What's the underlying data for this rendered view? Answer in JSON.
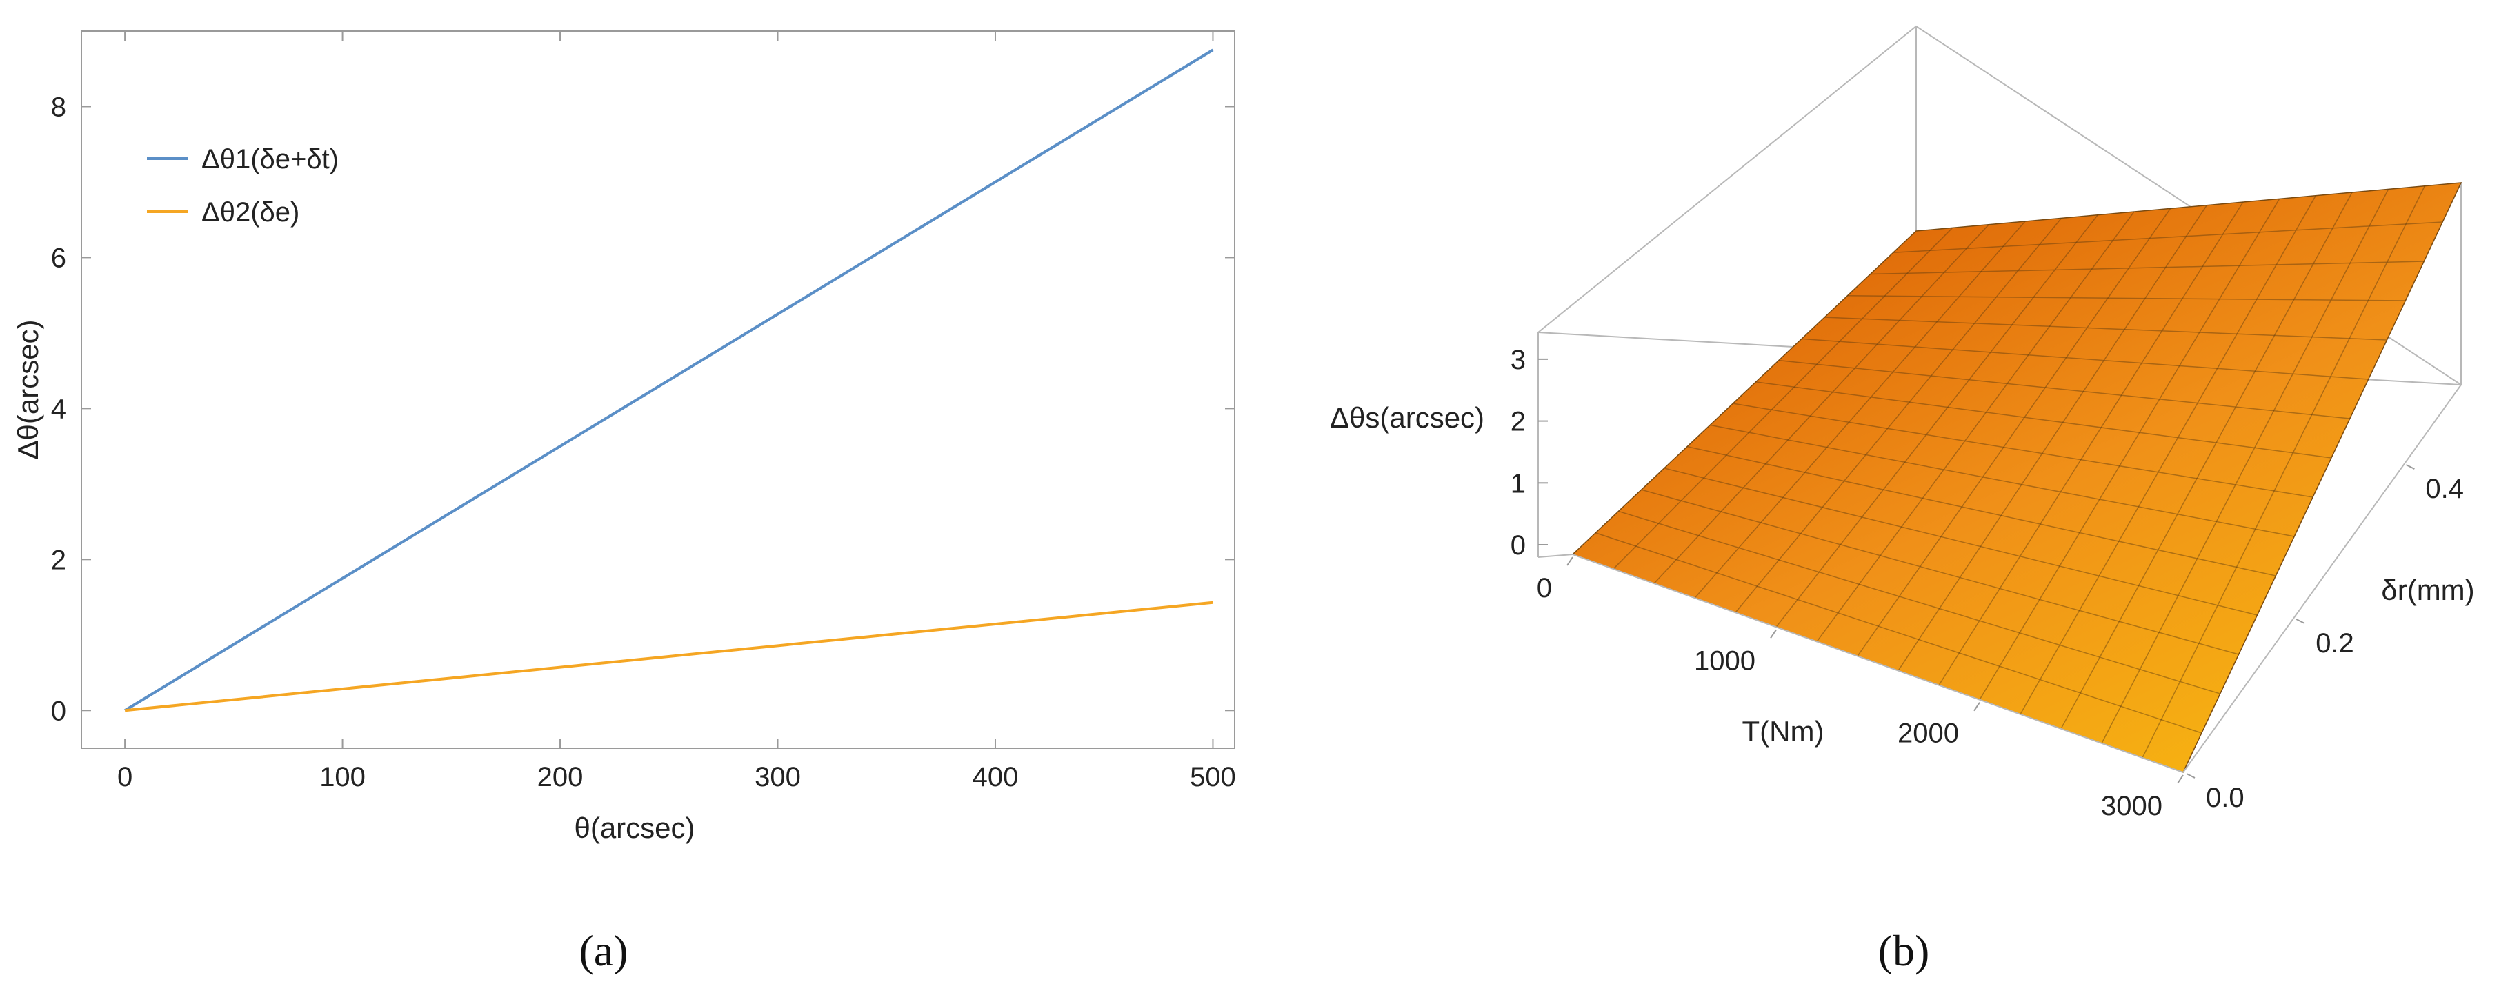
{
  "chart_data": [
    {
      "type": "line",
      "panel_label": "(a)",
      "xlabel": "θ(arcsec)",
      "ylabel": "Δθ(arcsec)",
      "xlim": [
        -20,
        510
      ],
      "ylim": [
        -0.5,
        9.0
      ],
      "xticks": [
        0,
        100,
        200,
        300,
        400,
        500
      ],
      "yticks": [
        0,
        2,
        4,
        6,
        8
      ],
      "grid": false,
      "legend_position": "top-left",
      "series": [
        {
          "name": "Δθ1(δe+δt)",
          "color": "#5b8fc7",
          "x": [
            0,
            500
          ],
          "y": [
            0,
            8.75
          ]
        },
        {
          "name": "Δθ2(δe)",
          "color": "#f5a623",
          "x": [
            0,
            500
          ],
          "y": [
            0,
            1.43
          ]
        }
      ]
    },
    {
      "type": "surface",
      "panel_label": "(b)",
      "xlabel": "T(Nm)",
      "ylabel": "δr(mm)",
      "zlabel": "Δθs(arcsec)",
      "xlim": [
        0,
        3000
      ],
      "ylim": [
        0,
        0.5
      ],
      "zlim": [
        0,
        3.4
      ],
      "xticks": [
        0,
        1000,
        2000,
        3000
      ],
      "yticks": [
        0.0,
        0.2,
        0.4
      ],
      "zticks": [
        0,
        1,
        2,
        3
      ],
      "grid_lines": 15,
      "colors": [
        "#f8b60a",
        "#e77a10",
        "#d45c00"
      ],
      "z_corners": {
        "T0_r0": 0.0,
        "T3000_r0": 0.0,
        "T0_r05": 2.0,
        "T3000_r05": 3.4
      }
    }
  ]
}
